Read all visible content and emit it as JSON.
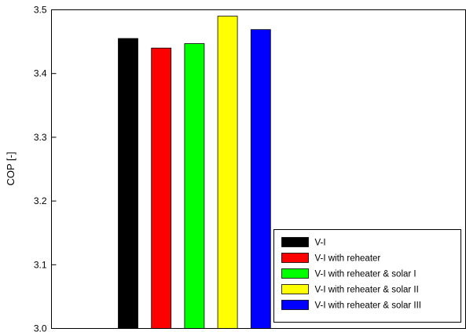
{
  "chart_data": {
    "type": "bar",
    "title": "",
    "xlabel": "",
    "ylabel": "COP [-]",
    "ylim": [
      3.0,
      3.5
    ],
    "yticks": [
      "3.0",
      "3.1",
      "3.2",
      "3.3",
      "3.4",
      "3.5"
    ],
    "grid": false,
    "legend_position": "bottom-right",
    "series": [
      {
        "name": "V-I",
        "value": 3.455,
        "color": "#000000"
      },
      {
        "name": "V-I with reheater",
        "value": 3.44,
        "color": "#ff0000"
      },
      {
        "name": "V-I with reheater & solar I",
        "value": 3.447,
        "color": "#00ff00"
      },
      {
        "name": "V-I with reheater & solar II",
        "value": 3.49,
        "color": "#ffff00"
      },
      {
        "name": "V-I with reheater & solar III",
        "value": 3.469,
        "color": "#0000ff"
      }
    ]
  }
}
